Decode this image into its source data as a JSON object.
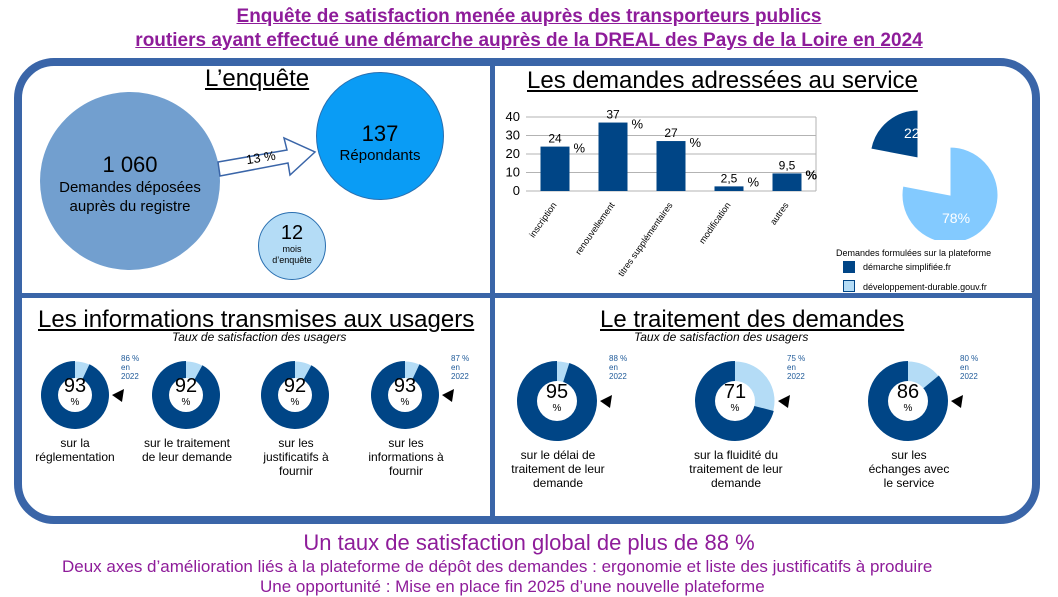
{
  "title": {
    "line1": "Enquête de satisfaction menée auprès des transporteurs publics ",
    "line2": "routiers ayant effectué une démarche auprès de la DREAL des Pays de la Loire en 2024"
  },
  "enquete": {
    "heading": "L’enquête",
    "big_circle": {
      "number": "1 060",
      "line1": "Demandes déposées",
      "line2": "auprès du registre"
    },
    "arrow_label": "13 %",
    "resp_circle": {
      "number": "137",
      "label": "Répondants"
    },
    "small_circle": {
      "number": "12",
      "line1": "mois",
      "line2": "d’enquête"
    },
    "colors": {
      "big": "#729fcf",
      "resp": "#0a9cf5",
      "small": "#b4dcf6"
    }
  },
  "demandes": {
    "heading": "Les demandes adressées au service",
    "pie_values": {
      "demarche": 22,
      "developpement": 78
    },
    "pie_labels": {
      "demarche": "22%",
      "developpement": "78%"
    },
    "legend_title": "Demandes formulées sur la plateforme",
    "legend": [
      {
        "label": "démarche simplifiée.fr",
        "color": "#004586"
      },
      {
        "label": "développement-durable.gouv.fr",
        "color": "#83caff"
      }
    ]
  },
  "chart_data": {
    "type": "bar",
    "categories": [
      "inscription",
      "renouvellement",
      "titres supplémentaires",
      "modification",
      "autres"
    ],
    "values": [
      24,
      37,
      27,
      2.5,
      9.5
    ],
    "value_labels": [
      "24",
      "37",
      "27",
      "2,5",
      "9,5"
    ],
    "unit_label": "%",
    "yticks": [
      "0",
      "10",
      "20",
      "30",
      "40"
    ],
    "ylim": [
      0,
      40
    ],
    "grid": true,
    "color": "#004586"
  },
  "informations": {
    "heading": "Les informations transmises aux usagers",
    "subtitle": "Taux de satisfaction des usagers",
    "donuts": [
      {
        "value": 93,
        "label": "93",
        "pct": "%",
        "desc": "sur la réglementation",
        "prev": [
          "86 %",
          "en",
          "2022"
        ]
      },
      {
        "value": 92,
        "label": "92",
        "pct": "%",
        "desc": "sur le traitement de leur demande",
        "prev": null
      },
      {
        "value": 92,
        "label": "92",
        "pct": "%",
        "desc": "sur les justificatifs à fournir",
        "prev": null
      },
      {
        "value": 93,
        "label": "93",
        "pct": "%",
        "desc": "sur les informations à fournir",
        "prev": [
          "87 %",
          "en",
          "2022"
        ]
      }
    ]
  },
  "traitement": {
    "heading": "Le traitement des demandes ",
    "subtitle": "Taux de satisfaction des usagers",
    "donuts": [
      {
        "value": 95,
        "label": "95",
        "pct": "%",
        "desc": "sur le délai de traitement de leur demande",
        "prev": [
          "88 %",
          "en",
          "2022"
        ]
      },
      {
        "value": 71,
        "label": "71",
        "pct": "%",
        "desc": "sur la fluidité du traitement de leur demande",
        "prev": [
          "75 %",
          "en",
          "2022"
        ]
      },
      {
        "value": 86,
        "label": "86",
        "pct": "%",
        "desc": "sur les échanges avec le service",
        "prev": [
          "80 %",
          "en",
          "2022"
        ]
      }
    ]
  },
  "donut_colors": {
    "main": "#004586",
    "rest": "#b4dcf6"
  },
  "footer": {
    "line1": "Un taux de satisfaction global de plus de 88 %",
    "line2": "Deux axes d’amélioration liés à la plateforme de dépôt des demandes : ergonomie et liste des justificatifs à produire",
    "line3": "Une opportunité : Mise en place fin 2025 d’une nouvelle plateforme"
  }
}
